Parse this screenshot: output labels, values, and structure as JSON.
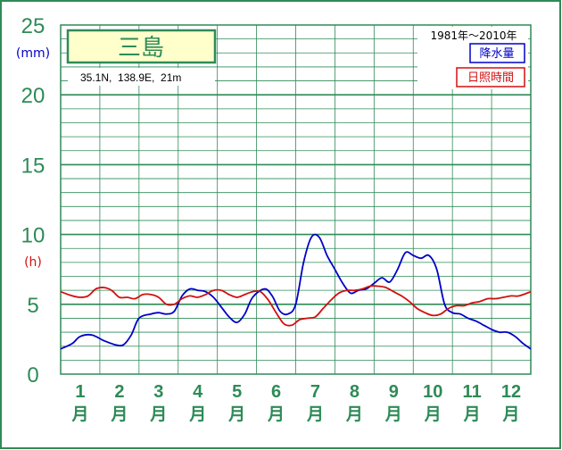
{
  "colors": {
    "frame": "#2e8b57",
    "grid": "#2e8b57",
    "axis_text": "#2e8b57",
    "precip": "#0000c8",
    "sunshine": "#d01010",
    "station_box_fill": "#ffffcc",
    "station_text": "#2e8b57"
  },
  "chart_data": {
    "type": "line",
    "station_name": "三島",
    "coords_label": "35.1N,  138.9E,  21m",
    "period_label": "1981年〜2010年",
    "y_ticks": [
      "0",
      "5",
      "10",
      "15",
      "20",
      "25"
    ],
    "unit_precip": "(mm)",
    "unit_sun": "(h)",
    "ylim": [
      0,
      25
    ],
    "month_numbers": [
      "1",
      "2",
      "3",
      "4",
      "5",
      "6",
      "7",
      "8",
      "9",
      "10",
      "11",
      "12"
    ],
    "month_suffix": "月",
    "legend_placement": "top-right",
    "grid": true,
    "x_range": [
      0.5,
      12.5
    ],
    "series": [
      {
        "name": "降水量",
        "color": "#0000c8",
        "x": [
          0.5,
          0.8,
          1.0,
          1.3,
          1.6,
          1.9,
          2.1,
          2.3,
          2.5,
          2.8,
          3.0,
          3.2,
          3.4,
          3.6,
          3.8,
          4.0,
          4.2,
          4.4,
          4.6,
          4.8,
          5.0,
          5.2,
          5.4,
          5.7,
          5.9,
          6.1,
          6.3,
          6.5,
          6.7,
          6.9,
          7.1,
          7.3,
          7.5,
          7.7,
          7.9,
          8.1,
          8.3,
          8.5,
          8.7,
          8.9,
          9.1,
          9.3,
          9.5,
          9.7,
          9.9,
          10.1,
          10.3,
          10.5,
          10.7,
          10.9,
          11.1,
          11.3,
          11.5,
          11.7,
          11.9,
          12.1,
          12.3,
          12.5
        ],
        "y": [
          1.8,
          2.2,
          2.7,
          2.8,
          2.4,
          2.1,
          2.1,
          2.8,
          4.0,
          4.3,
          4.4,
          4.3,
          4.5,
          5.6,
          6.1,
          6.0,
          5.9,
          5.5,
          4.8,
          4.1,
          3.7,
          4.3,
          5.5,
          6.1,
          5.6,
          4.5,
          4.3,
          5.0,
          8.0,
          9.8,
          9.8,
          8.5,
          7.5,
          6.5,
          5.8,
          6.0,
          6.1,
          6.5,
          6.9,
          6.6,
          7.5,
          8.7,
          8.5,
          8.3,
          8.5,
          7.5,
          5.0,
          4.4,
          4.3,
          4.0,
          3.8,
          3.5,
          3.2,
          3.0,
          3.0,
          2.7,
          2.2,
          1.8
        ]
      },
      {
        "name": "日照時間",
        "color": "#d01010",
        "x": [
          0.5,
          0.8,
          1.0,
          1.2,
          1.4,
          1.6,
          1.8,
          2.0,
          2.2,
          2.4,
          2.6,
          2.8,
          3.0,
          3.2,
          3.4,
          3.6,
          3.8,
          4.0,
          4.2,
          4.4,
          4.6,
          4.8,
          5.0,
          5.2,
          5.4,
          5.6,
          5.8,
          6.0,
          6.2,
          6.4,
          6.6,
          6.8,
          7.0,
          7.2,
          7.4,
          7.6,
          7.8,
          8.0,
          8.2,
          8.4,
          8.6,
          8.8,
          9.0,
          9.2,
          9.4,
          9.6,
          9.8,
          10.0,
          10.2,
          10.4,
          10.6,
          10.8,
          11.0,
          11.2,
          11.4,
          11.6,
          11.8,
          12.0,
          12.2,
          12.5
        ],
        "y": [
          5.9,
          5.6,
          5.5,
          5.6,
          6.1,
          6.2,
          6.0,
          5.5,
          5.5,
          5.4,
          5.7,
          5.7,
          5.5,
          5.0,
          5.0,
          5.4,
          5.6,
          5.5,
          5.7,
          6.0,
          6.0,
          5.7,
          5.5,
          5.7,
          5.9,
          5.9,
          5.3,
          4.4,
          3.6,
          3.5,
          3.9,
          4.0,
          4.1,
          4.7,
          5.3,
          5.8,
          6.0,
          6.0,
          6.1,
          6.3,
          6.3,
          6.2,
          5.9,
          5.6,
          5.2,
          4.7,
          4.4,
          4.2,
          4.3,
          4.7,
          4.9,
          4.9,
          5.1,
          5.2,
          5.4,
          5.4,
          5.5,
          5.6,
          5.6,
          5.9
        ]
      }
    ]
  }
}
